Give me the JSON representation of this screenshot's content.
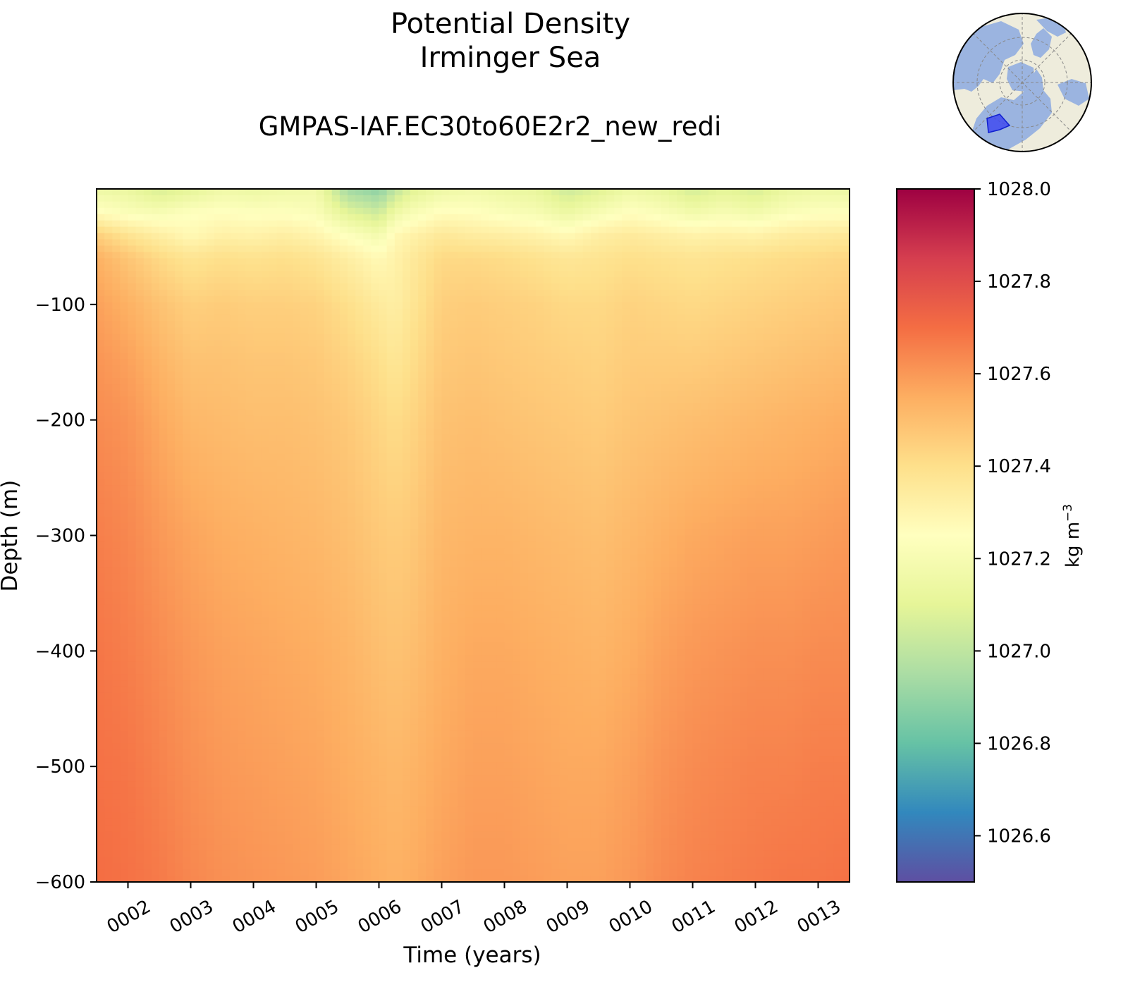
{
  "chart_data": {
    "type": "heatmap",
    "title": "Potential Density",
    "subtitle": "Irminger Sea",
    "run_name": "GMPAS-IAF.EC30to60E2r2_new_redi",
    "xlabel": "Time (years)",
    "ylabel": "Depth (m)",
    "x_ticks": [
      "0002",
      "0003",
      "0004",
      "0005",
      "0006",
      "0007",
      "0008",
      "0009",
      "0010",
      "0011",
      "0012",
      "0013"
    ],
    "y_ticks": [
      -100,
      -200,
      -300,
      -400,
      -500,
      -600
    ],
    "ylim": [
      -600,
      0
    ],
    "colorbar": {
      "label": "kg m",
      "label_exponent": "−3",
      "range": [
        1026.5,
        1028.0
      ],
      "ticks": [
        "1026.6",
        "1026.8",
        "1027.0",
        "1027.2",
        "1027.4",
        "1027.6",
        "1027.8",
        "1028.0"
      ],
      "colormap": "Spectral_r"
    },
    "depths": [
      0,
      -20,
      -40,
      -60,
      -100,
      -150,
      -200,
      -300,
      -400,
      -500,
      -600
    ],
    "years": [
      1.5,
      2.0,
      2.5,
      3.0,
      3.5,
      4.0,
      4.5,
      5.0,
      5.5,
      6.0,
      6.25,
      6.5,
      7.0,
      7.5,
      8.0,
      8.5,
      9.0,
      9.5,
      10.0,
      10.5,
      11.0,
      11.5,
      12.0,
      12.5,
      13.0,
      13.5
    ],
    "values": [
      [
        1027.15,
        1027.13,
        1027.06,
        1027.1,
        1027.16,
        1027.14,
        1027.16,
        1027.17,
        1026.93,
        1026.88,
        1026.99,
        1027.08,
        1027.15,
        1027.17,
        1027.14,
        1027.12,
        1027.03,
        1027.08,
        1027.15,
        1027.12,
        1027.05,
        1027.1,
        1027.06,
        1027.13,
        1027.15,
        1027.14
      ],
      [
        1027.26,
        1027.22,
        1027.2,
        1027.24,
        1027.25,
        1027.24,
        1027.24,
        1027.22,
        1027.09,
        1027.03,
        1027.15,
        1027.2,
        1027.26,
        1027.25,
        1027.22,
        1027.2,
        1027.14,
        1027.2,
        1027.25,
        1027.22,
        1027.17,
        1027.2,
        1027.17,
        1027.22,
        1027.24,
        1027.24
      ],
      [
        1027.45,
        1027.38,
        1027.33,
        1027.28,
        1027.32,
        1027.31,
        1027.33,
        1027.3,
        1027.24,
        1027.18,
        1027.28,
        1027.31,
        1027.36,
        1027.34,
        1027.33,
        1027.31,
        1027.28,
        1027.33,
        1027.35,
        1027.33,
        1027.31,
        1027.32,
        1027.31,
        1027.34,
        1027.35,
        1027.36
      ],
      [
        1027.54,
        1027.48,
        1027.42,
        1027.38,
        1027.4,
        1027.39,
        1027.4,
        1027.38,
        1027.33,
        1027.28,
        1027.31,
        1027.35,
        1027.42,
        1027.42,
        1027.41,
        1027.39,
        1027.37,
        1027.38,
        1027.4,
        1027.39,
        1027.38,
        1027.39,
        1027.4,
        1027.41,
        1027.42,
        1027.43
      ],
      [
        1027.58,
        1027.54,
        1027.49,
        1027.45,
        1027.46,
        1027.45,
        1027.45,
        1027.44,
        1027.4,
        1027.35,
        1027.33,
        1027.37,
        1027.45,
        1027.46,
        1027.45,
        1027.44,
        1027.42,
        1027.42,
        1027.44,
        1027.43,
        1027.42,
        1027.43,
        1027.44,
        1027.45,
        1027.46,
        1027.47
      ],
      [
        1027.61,
        1027.58,
        1027.53,
        1027.49,
        1027.49,
        1027.48,
        1027.48,
        1027.47,
        1027.44,
        1027.4,
        1027.37,
        1027.4,
        1027.47,
        1027.48,
        1027.47,
        1027.46,
        1027.45,
        1027.44,
        1027.46,
        1027.46,
        1027.46,
        1027.47,
        1027.48,
        1027.49,
        1027.5,
        1027.51
      ],
      [
        1027.63,
        1027.61,
        1027.56,
        1027.52,
        1027.51,
        1027.5,
        1027.5,
        1027.49,
        1027.47,
        1027.43,
        1027.41,
        1027.43,
        1027.49,
        1027.5,
        1027.49,
        1027.48,
        1027.47,
        1027.46,
        1027.48,
        1027.49,
        1027.5,
        1027.51,
        1027.52,
        1027.53,
        1027.54,
        1027.55
      ],
      [
        1027.66,
        1027.64,
        1027.6,
        1027.57,
        1027.55,
        1027.54,
        1027.53,
        1027.52,
        1027.5,
        1027.47,
        1027.46,
        1027.47,
        1027.52,
        1027.53,
        1027.53,
        1027.52,
        1027.51,
        1027.5,
        1027.52,
        1027.54,
        1027.56,
        1027.57,
        1027.58,
        1027.58,
        1027.59,
        1027.6
      ],
      [
        1027.68,
        1027.66,
        1027.63,
        1027.6,
        1027.58,
        1027.57,
        1027.56,
        1027.55,
        1027.53,
        1027.5,
        1027.49,
        1027.5,
        1027.54,
        1027.56,
        1027.56,
        1027.55,
        1027.54,
        1027.53,
        1027.55,
        1027.58,
        1027.6,
        1027.61,
        1027.62,
        1027.62,
        1027.63,
        1027.63
      ],
      [
        1027.69,
        1027.68,
        1027.65,
        1027.62,
        1027.6,
        1027.59,
        1027.58,
        1027.57,
        1027.55,
        1027.53,
        1027.52,
        1027.53,
        1027.56,
        1027.58,
        1027.58,
        1027.57,
        1027.56,
        1027.56,
        1027.58,
        1027.61,
        1027.63,
        1027.64,
        1027.65,
        1027.65,
        1027.66,
        1027.66
      ],
      [
        1027.7,
        1027.69,
        1027.67,
        1027.64,
        1027.62,
        1027.61,
        1027.6,
        1027.59,
        1027.57,
        1027.55,
        1027.54,
        1027.55,
        1027.58,
        1027.6,
        1027.6,
        1027.59,
        1027.58,
        1027.58,
        1027.6,
        1027.63,
        1027.65,
        1027.66,
        1027.67,
        1027.68,
        1027.68,
        1027.69
      ]
    ]
  }
}
